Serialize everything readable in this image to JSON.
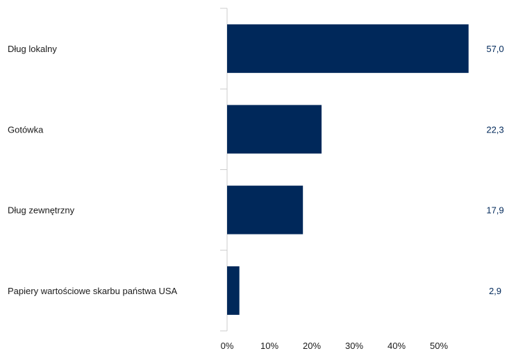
{
  "chart_data": {
    "type": "bar",
    "orientation": "horizontal",
    "categories": [
      "Dług lokalny",
      "Gotówka",
      "Dług zewnętrzny",
      "Papiery wartościowe skarbu państwa USA"
    ],
    "values": [
      57.0,
      22.3,
      17.9,
      2.9
    ],
    "value_labels": [
      "57,0",
      "22,3",
      "17,9",
      "2,9"
    ],
    "x_ticks": [
      0,
      10,
      20,
      30,
      40,
      50
    ],
    "x_tick_labels": [
      "0%",
      "10%",
      "20%",
      "30%",
      "40%",
      "50%"
    ],
    "xlim": [
      0,
      60
    ],
    "title": "",
    "xlabel": "",
    "ylabel": "",
    "grid": false,
    "legend": "none",
    "colors": {
      "bar": "#00285a",
      "value_label": "#00285a",
      "axis": "#cccccc"
    }
  }
}
